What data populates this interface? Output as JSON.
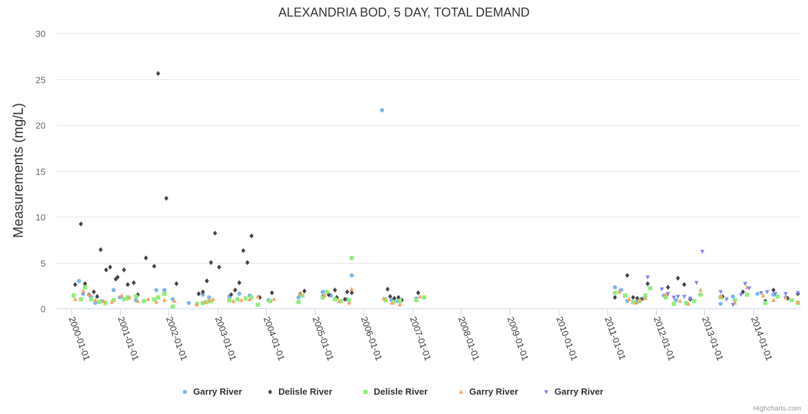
{
  "chart_data": {
    "type": "scatter",
    "title": "ALEXANDRIA BOD, 5 DAY, TOTAL DEMAND",
    "ylabel": "Measurements (mg/L)",
    "xlabel": "",
    "ylim": [
      0,
      30
    ],
    "y_ticks": [
      0,
      5,
      10,
      15,
      20,
      25,
      30
    ],
    "xlim": [
      "1999-09-15",
      "2014-12-25"
    ],
    "x_ticks": [
      "2000-01-01",
      "2001-01-01",
      "2002-01-01",
      "2003-01-01",
      "2004-01-01",
      "2005-01-01",
      "2006-01-01",
      "2007-01-01",
      "2008-01-01",
      "2009-01-01",
      "2010-01-01",
      "2011-01-01",
      "2012-01-01",
      "2013-01-01",
      "2014-01-01"
    ],
    "grid": "horizontal",
    "legend_position": "bottom-center",
    "credits": "Highcharts.com",
    "series": [
      {
        "name": "Garry River",
        "marker": "circle",
        "color": "#7cb5ec",
        "points": [
          [
            "2000-03-01",
            3.0
          ],
          [
            "2000-04-01",
            1.6
          ],
          [
            "2000-06-01",
            1.2
          ],
          [
            "2000-07-01",
            0.6
          ],
          [
            "2000-08-15",
            0.8
          ],
          [
            "2000-11-15",
            2.0
          ],
          [
            "2001-01-01",
            1.2
          ],
          [
            "2001-03-01",
            1.1
          ],
          [
            "2001-05-01",
            0.9
          ],
          [
            "2001-10-01",
            2.0
          ],
          [
            "2001-12-01",
            2.0
          ],
          [
            "2002-02-01",
            1.0
          ],
          [
            "2002-06-01",
            0.6
          ],
          [
            "2002-09-15",
            1.5
          ],
          [
            "2002-11-01",
            1.2
          ],
          [
            "2003-04-01",
            1.3
          ],
          [
            "2003-06-15",
            1.6
          ],
          [
            "2003-09-01",
            1.4
          ],
          [
            "2004-01-20",
            0.9
          ],
          [
            "2004-09-01",
            1.2
          ],
          [
            "2005-03-01",
            1.8
          ],
          [
            "2005-05-01",
            1.4
          ],
          [
            "2005-09-01",
            1.0
          ],
          [
            "2005-10-05",
            3.6
          ],
          [
            "2006-05-20",
            21.6
          ],
          [
            "2006-06-15",
            1.0
          ],
          [
            "2006-08-01",
            0.9
          ],
          [
            "2006-09-15",
            0.8
          ],
          [
            "2007-02-01",
            1.1
          ],
          [
            "2011-03-01",
            2.3
          ],
          [
            "2011-04-15",
            2.0
          ],
          [
            "2011-06-01",
            0.8
          ],
          [
            "2011-08-15",
            0.7
          ],
          [
            "2011-10-01",
            1.1
          ],
          [
            "2012-03-01",
            1.4
          ],
          [
            "2012-06-01",
            0.9
          ],
          [
            "2013-05-01",
            0.5
          ],
          [
            "2013-08-01",
            1.3
          ],
          [
            "2014-02-01",
            1.6
          ],
          [
            "2014-06-01",
            1.5
          ],
          [
            "2014-09-01",
            1.2
          ]
        ]
      },
      {
        "name": "Delisle River",
        "marker": "diamond",
        "color": "#434348",
        "points": [
          [
            "2000-02-01",
            2.6
          ],
          [
            "2000-03-15",
            9.2
          ],
          [
            "2000-04-15",
            2.7
          ],
          [
            "2000-05-15",
            1.5
          ],
          [
            "2000-06-20",
            1.8
          ],
          [
            "2000-07-15",
            1.3
          ],
          [
            "2000-08-10",
            6.4
          ],
          [
            "2000-09-20",
            4.2
          ],
          [
            "2000-10-20",
            4.5
          ],
          [
            "2000-12-01",
            3.2
          ],
          [
            "2000-12-15",
            3.4
          ],
          [
            "2001-02-01",
            4.2
          ],
          [
            "2001-03-01",
            2.6
          ],
          [
            "2001-04-15",
            2.8
          ],
          [
            "2001-05-15",
            1.5
          ],
          [
            "2001-07-15",
            5.5
          ],
          [
            "2001-09-15",
            4.6
          ],
          [
            "2001-10-15",
            25.6
          ],
          [
            "2001-12-15",
            12.0
          ],
          [
            "2002-03-01",
            2.7
          ],
          [
            "2002-08-15",
            1.6
          ],
          [
            "2002-09-15",
            1.8
          ],
          [
            "2002-10-15",
            3.0
          ],
          [
            "2002-11-15",
            5.0
          ],
          [
            "2002-12-15",
            8.2
          ],
          [
            "2003-01-15",
            4.5
          ],
          [
            "2003-04-15",
            1.5
          ],
          [
            "2003-05-15",
            2.0
          ],
          [
            "2003-06-15",
            2.8
          ],
          [
            "2003-07-15",
            6.3
          ],
          [
            "2003-08-15",
            5.0
          ],
          [
            "2003-09-15",
            7.9
          ],
          [
            "2003-11-15",
            1.2
          ],
          [
            "2004-02-15",
            1.7
          ],
          [
            "2004-09-15",
            1.6
          ],
          [
            "2004-10-15",
            1.9
          ],
          [
            "2005-03-01",
            1.3
          ],
          [
            "2005-04-15",
            1.5
          ],
          [
            "2005-06-01",
            2.0
          ],
          [
            "2005-06-15",
            1.2
          ],
          [
            "2005-08-15",
            1.0
          ],
          [
            "2005-09-01",
            1.8
          ],
          [
            "2005-10-05",
            1.7
          ],
          [
            "2006-07-01",
            2.1
          ],
          [
            "2006-07-20",
            1.3
          ],
          [
            "2006-08-20",
            1.1
          ],
          [
            "2006-09-20",
            1.2
          ],
          [
            "2006-10-15",
            0.9
          ],
          [
            "2007-02-15",
            1.7
          ],
          [
            "2011-03-01",
            1.2
          ],
          [
            "2011-06-01",
            3.6
          ],
          [
            "2011-07-15",
            1.2
          ],
          [
            "2011-08-15",
            1.1
          ],
          [
            "2011-09-15",
            1.0
          ],
          [
            "2011-11-01",
            2.7
          ],
          [
            "2012-04-01",
            2.3
          ],
          [
            "2012-06-15",
            3.3
          ],
          [
            "2012-08-01",
            2.6
          ],
          [
            "2012-09-15",
            1.0
          ],
          [
            "2013-05-15",
            1.3
          ],
          [
            "2013-10-15",
            1.8
          ],
          [
            "2014-04-01",
            0.8
          ],
          [
            "2014-06-01",
            2.0
          ],
          [
            "2014-09-15",
            1.1
          ],
          [
            "2014-12-01",
            1.6
          ]
        ]
      },
      {
        "name": "Delisle River",
        "marker": "square",
        "color": "#90ed7d",
        "points": [
          [
            "2000-01-20",
            1.4
          ],
          [
            "2000-03-15",
            1.0
          ],
          [
            "2000-04-15",
            2.3
          ],
          [
            "2000-06-01",
            1.0
          ],
          [
            "2000-08-01",
            0.7
          ],
          [
            "2000-09-15",
            0.6
          ],
          [
            "2000-11-15",
            0.9
          ],
          [
            "2001-02-01",
            1.0
          ],
          [
            "2001-03-01",
            1.2
          ],
          [
            "2001-05-01",
            1.3
          ],
          [
            "2001-07-01",
            0.8
          ],
          [
            "2001-09-15",
            1.0
          ],
          [
            "2001-10-15",
            1.2
          ],
          [
            "2001-12-01",
            1.6
          ],
          [
            "2002-02-01",
            0.2
          ],
          [
            "2002-08-01",
            0.5
          ],
          [
            "2002-09-15",
            0.6
          ],
          [
            "2002-10-15",
            0.7
          ],
          [
            "2002-11-15",
            0.8
          ],
          [
            "2003-04-01",
            0.9
          ],
          [
            "2003-06-01",
            1.0
          ],
          [
            "2003-08-01",
            1.1
          ],
          [
            "2003-09-15",
            1.2
          ],
          [
            "2003-11-01",
            0.4
          ],
          [
            "2004-02-01",
            0.8
          ],
          [
            "2004-09-01",
            0.7
          ],
          [
            "2004-10-01",
            1.4
          ],
          [
            "2005-03-01",
            1.2
          ],
          [
            "2005-04-01",
            1.8
          ],
          [
            "2005-06-01",
            1.0
          ],
          [
            "2005-07-15",
            0.8
          ],
          [
            "2005-09-15",
            0.9
          ],
          [
            "2005-10-05",
            5.5
          ],
          [
            "2006-06-15",
            0.9
          ],
          [
            "2006-08-15",
            0.7
          ],
          [
            "2006-10-01",
            0.8
          ],
          [
            "2007-02-01",
            0.9
          ],
          [
            "2007-04-01",
            1.2
          ],
          [
            "2011-03-01",
            1.7
          ],
          [
            "2011-05-15",
            1.4
          ],
          [
            "2011-07-15",
            0.7
          ],
          [
            "2011-09-01",
            0.8
          ],
          [
            "2011-10-15",
            1.4
          ],
          [
            "2011-11-20",
            2.2
          ],
          [
            "2012-03-15",
            1.2
          ],
          [
            "2012-05-15",
            0.5
          ],
          [
            "2012-08-15",
            0.6
          ],
          [
            "2012-10-15",
            0.8
          ],
          [
            "2012-12-01",
            1.5
          ],
          [
            "2013-05-01",
            1.2
          ],
          [
            "2013-08-15",
            0.9
          ],
          [
            "2013-11-15",
            1.5
          ],
          [
            "2014-04-01",
            0.6
          ],
          [
            "2014-07-01",
            1.3
          ],
          [
            "2014-10-15",
            0.9
          ],
          [
            "2014-12-01",
            0.6
          ]
        ]
      },
      {
        "name": "Garry River",
        "marker": "triangle",
        "color": "#f7a35c",
        "points": [
          [
            "2000-02-01",
            1.0
          ],
          [
            "2000-04-01",
            1.9
          ],
          [
            "2000-05-15",
            1.5
          ],
          [
            "2000-07-01",
            0.9
          ],
          [
            "2000-09-01",
            0.8
          ],
          [
            "2000-11-01",
            0.7
          ],
          [
            "2001-01-15",
            1.4
          ],
          [
            "2001-03-15",
            1.2
          ],
          [
            "2001-05-15",
            0.8
          ],
          [
            "2001-08-01",
            1.0
          ],
          [
            "2001-10-01",
            0.7
          ],
          [
            "2001-12-01",
            0.9
          ],
          [
            "2002-02-15",
            0.8
          ],
          [
            "2002-08-01",
            0.4
          ],
          [
            "2002-10-01",
            0.7
          ],
          [
            "2002-11-01",
            0.9
          ],
          [
            "2002-12-01",
            1.0
          ],
          [
            "2003-05-01",
            0.8
          ],
          [
            "2003-07-01",
            0.9
          ],
          [
            "2003-09-01",
            1.0
          ],
          [
            "2003-11-01",
            1.3
          ],
          [
            "2004-03-01",
            1.0
          ],
          [
            "2004-09-15",
            1.6
          ],
          [
            "2005-03-15",
            1.4
          ],
          [
            "2005-07-01",
            0.8
          ],
          [
            "2005-09-15",
            0.6
          ],
          [
            "2005-10-05",
            2.1
          ],
          [
            "2006-06-01",
            1.1
          ],
          [
            "2006-08-01",
            0.6
          ],
          [
            "2006-10-01",
            0.4
          ],
          [
            "2007-03-01",
            1.3
          ],
          [
            "2011-04-01",
            1.8
          ],
          [
            "2011-06-15",
            1.0
          ],
          [
            "2011-08-01",
            0.6
          ],
          [
            "2011-09-01",
            0.9
          ],
          [
            "2011-10-15",
            1.1
          ],
          [
            "2012-03-15",
            1.5
          ],
          [
            "2012-07-01",
            0.8
          ],
          [
            "2012-09-01",
            0.5
          ],
          [
            "2012-12-01",
            2.0
          ],
          [
            "2013-05-01",
            1.3
          ],
          [
            "2013-08-15",
            0.6
          ],
          [
            "2013-11-15",
            2.3
          ],
          [
            "2014-03-15",
            1.4
          ],
          [
            "2014-06-01",
            0.9
          ],
          [
            "2014-09-01",
            1.2
          ],
          [
            "2014-12-01",
            0.7
          ]
        ]
      },
      {
        "name": "Garry River",
        "marker": "triangle-down",
        "color": "#8085e9",
        "points": [
          [
            "2011-11-01",
            3.4
          ],
          [
            "2012-02-15",
            2.1
          ],
          [
            "2012-04-01",
            1.6
          ],
          [
            "2012-05-15",
            1.2
          ],
          [
            "2012-06-15",
            1.3
          ],
          [
            "2012-08-01",
            1.3
          ],
          [
            "2012-09-15",
            1.1
          ],
          [
            "2012-11-01",
            2.8
          ],
          [
            "2012-12-15",
            6.2
          ],
          [
            "2013-05-01",
            1.8
          ],
          [
            "2013-06-15",
            1.0
          ],
          [
            "2013-08-01",
            0.4
          ],
          [
            "2013-10-01",
            1.5
          ],
          [
            "2013-11-01",
            2.7
          ],
          [
            "2013-12-01",
            2.2
          ],
          [
            "2014-03-01",
            1.7
          ],
          [
            "2014-04-15",
            1.8
          ],
          [
            "2014-06-15",
            1.6
          ],
          [
            "2014-09-01",
            1.6
          ],
          [
            "2014-12-01",
            1.7
          ]
        ]
      }
    ]
  }
}
